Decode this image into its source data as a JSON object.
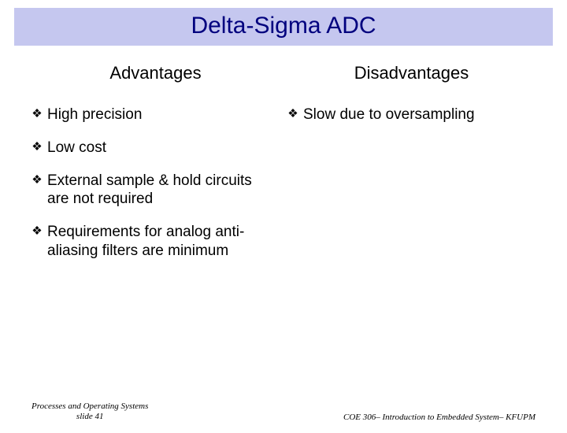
{
  "title": {
    "text": "Delta-Sigma ADC",
    "bg_color": "#c5c7ef",
    "text_color": "#00007e",
    "fontsize": 30
  },
  "body_text_color": "#000000",
  "columns": {
    "left": {
      "heading": "Advantages",
      "items": [
        "High precision",
        "Low cost",
        "External sample & hold circuits are not required",
        "Requirements for analog anti-aliasing filters are minimum"
      ]
    },
    "right": {
      "heading": "Disadvantages",
      "items": [
        "Slow due to oversampling"
      ]
    }
  },
  "bullet_glyph": "❖",
  "footer": {
    "left_line1": "Processes and Operating Systems",
    "left_line2": "slide 41",
    "right": "COE 306– Introduction to Embedded System– KFUPM",
    "color": "#000000"
  }
}
